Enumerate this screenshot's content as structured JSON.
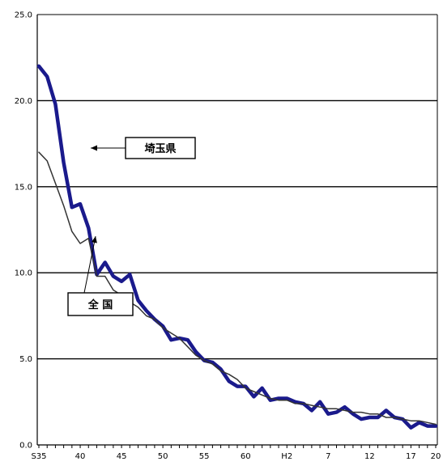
{
  "chart_data": {
    "type": "line",
    "title": "",
    "xlabel": "",
    "ylabel": "",
    "ylim": [
      0,
      25
    ],
    "yticks": [
      "0.0",
      "5.0",
      "10.0",
      "15.0",
      "20.0",
      "25.0"
    ],
    "x_count": 49,
    "x_tick_labels": [
      {
        "index": 0,
        "label": "S35"
      },
      {
        "index": 5,
        "label": "40"
      },
      {
        "index": 10,
        "label": "45"
      },
      {
        "index": 15,
        "label": "50"
      },
      {
        "index": 20,
        "label": "55"
      },
      {
        "index": 25,
        "label": "60"
      },
      {
        "index": 30,
        "label": "H2"
      },
      {
        "index": 35,
        "label": "7"
      },
      {
        "index": 40,
        "label": "12"
      },
      {
        "index": 45,
        "label": "17"
      },
      {
        "index": 48,
        "label": "20"
      }
    ],
    "grid": "horizontal",
    "series": [
      {
        "name": "埼玉県",
        "color": "#1a1a8c",
        "values": [
          22.0,
          21.4,
          19.8,
          16.4,
          13.8,
          14.0,
          12.6,
          9.9,
          10.6,
          9.8,
          9.5,
          9.9,
          8.4,
          7.8,
          7.3,
          6.9,
          6.1,
          6.2,
          6.1,
          5.4,
          4.9,
          4.8,
          4.4,
          3.7,
          3.4,
          3.4,
          2.8,
          3.3,
          2.6,
          2.7,
          2.7,
          2.5,
          2.4,
          2.0,
          2.5,
          1.8,
          1.9,
          2.2,
          1.8,
          1.5,
          1.6,
          1.6,
          2.0,
          1.6,
          1.5,
          1.0,
          1.3,
          1.1,
          1.1
        ]
      },
      {
        "name": "全 国",
        "color": "#333333",
        "values": [
          17.0,
          16.5,
          15.2,
          13.9,
          12.4,
          11.7,
          12.0,
          9.8,
          9.8,
          9.0,
          8.7,
          8.3,
          8.0,
          7.5,
          7.3,
          6.8,
          6.5,
          6.2,
          5.7,
          5.2,
          4.9,
          4.7,
          4.3,
          4.1,
          3.8,
          3.3,
          3.1,
          2.9,
          2.7,
          2.6,
          2.6,
          2.4,
          2.4,
          2.3,
          2.2,
          2.1,
          2.1,
          2.0,
          1.9,
          1.9,
          1.8,
          1.8,
          1.6,
          1.6,
          1.5,
          1.4,
          1.4,
          1.3,
          1.2
        ]
      }
    ],
    "annotations": [
      {
        "label": "埼玉県",
        "series": "埼玉県"
      },
      {
        "label": "全 国",
        "series": "全 国"
      }
    ]
  }
}
